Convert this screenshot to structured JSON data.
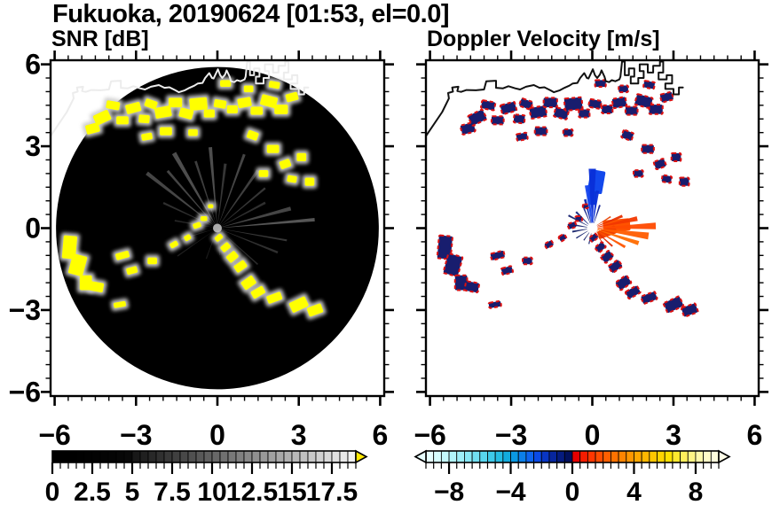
{
  "chart_data": {
    "type": "radar_ppi_pair",
    "suptitle": "Fukuoka, 20190624 [01:53, el=0.0]",
    "axis_range_km": [
      -6.15,
      6.15
    ],
    "x_tick_values": [
      -6,
      -3,
      0,
      3,
      6
    ],
    "x_tick_labels": [
      "−6",
      "−3",
      "0",
      "3",
      "6"
    ],
    "y_tick_values": [
      6,
      3,
      0,
      -3,
      -6
    ],
    "y_tick_labels": [
      "6",
      "3",
      "0",
      "−3",
      "−6"
    ],
    "minor_tick_step_km": 0.5,
    "panels": [
      {
        "id": "snr",
        "title": "SNR [dB]",
        "background": "#ffffff",
        "disk_color": "#000000",
        "echo_color": "#ffff00",
        "echo_halo_color": "#cccccc",
        "coast_color": "#ececec",
        "scan_radius_km": 5.95
      },
      {
        "id": "vel",
        "title": "Doppler Velocity [m/s]",
        "background": "#ffffff",
        "echo_color": "#181d6e",
        "echo_edge_color": "#dd1111",
        "coast_color": "#111111"
      }
    ],
    "echoes_km": [
      [
        -4.6,
        3.65,
        0.5,
        0.35,
        -15
      ],
      [
        -4.25,
        4.05,
        0.6,
        0.4,
        -25
      ],
      [
        -3.85,
        4.5,
        0.5,
        0.3,
        10
      ],
      [
        -3.5,
        3.95,
        0.45,
        0.3,
        0
      ],
      [
        -3.1,
        4.4,
        0.55,
        0.35,
        -15
      ],
      [
        -2.7,
        4.0,
        0.4,
        0.3,
        5
      ],
      [
        -2.45,
        4.55,
        0.45,
        0.3,
        20
      ],
      [
        -2.0,
        4.25,
        0.6,
        0.4,
        -10
      ],
      [
        -1.55,
        4.6,
        0.5,
        0.35,
        0
      ],
      [
        -1.15,
        4.2,
        0.5,
        0.35,
        15
      ],
      [
        -0.7,
        4.55,
        0.65,
        0.45,
        -5
      ],
      [
        -0.3,
        4.2,
        0.4,
        0.3,
        0
      ],
      [
        0.1,
        4.55,
        0.45,
        0.3,
        10
      ],
      [
        0.55,
        4.35,
        0.4,
        0.3,
        0
      ],
      [
        1.0,
        4.6,
        0.5,
        0.35,
        -10
      ],
      [
        1.45,
        4.3,
        0.45,
        0.3,
        0
      ],
      [
        1.9,
        4.65,
        0.6,
        0.4,
        15
      ],
      [
        2.35,
        4.35,
        0.5,
        0.35,
        0
      ],
      [
        2.75,
        4.8,
        0.45,
        0.3,
        -15
      ],
      [
        0.3,
        5.3,
        0.4,
        0.25,
        0
      ],
      [
        1.15,
        5.1,
        0.35,
        0.25,
        0
      ],
      [
        2.1,
        5.25,
        0.4,
        0.25,
        10
      ],
      [
        -1.9,
        3.55,
        0.45,
        0.3,
        0
      ],
      [
        -2.6,
        3.35,
        0.4,
        0.25,
        -10
      ],
      [
        -0.9,
        3.5,
        0.35,
        0.25,
        0
      ],
      [
        1.3,
        3.4,
        0.4,
        0.3,
        20
      ],
      [
        2.05,
        2.9,
        0.45,
        0.3,
        0
      ],
      [
        2.5,
        2.35,
        0.4,
        0.3,
        -20
      ],
      [
        1.7,
        2.0,
        0.35,
        0.25,
        0
      ],
      [
        2.75,
        1.8,
        0.35,
        0.25,
        10
      ],
      [
        3.1,
        2.6,
        0.35,
        0.3,
        0
      ],
      [
        3.4,
        1.7,
        0.35,
        0.3,
        0
      ],
      [
        0.05,
        -0.35,
        0.3,
        0.2,
        -40
      ],
      [
        0.3,
        -0.7,
        0.35,
        0.25,
        -40
      ],
      [
        0.55,
        -1.05,
        0.4,
        0.3,
        -40
      ],
      [
        0.85,
        -1.4,
        0.45,
        0.3,
        -35
      ],
      [
        1.15,
        -2.0,
        0.5,
        0.35,
        -35
      ],
      [
        1.5,
        -2.35,
        0.5,
        0.3,
        -30
      ],
      [
        2.1,
        -2.55,
        0.55,
        0.3,
        -20
      ],
      [
        3.0,
        -2.8,
        0.65,
        0.4,
        -25
      ],
      [
        3.6,
        -3.0,
        0.55,
        0.35,
        -20
      ],
      [
        -5.45,
        -0.7,
        0.5,
        0.85,
        5
      ],
      [
        -5.15,
        -1.35,
        0.55,
        0.75,
        15
      ],
      [
        -4.85,
        -2.0,
        0.45,
        0.55,
        0
      ],
      [
        -4.45,
        -2.15,
        0.5,
        0.35,
        10
      ],
      [
        -3.6,
        -2.8,
        0.45,
        0.2,
        -10
      ],
      [
        -3.5,
        -1.0,
        0.5,
        0.25,
        -15
      ],
      [
        -3.15,
        -1.55,
        0.4,
        0.25,
        -15
      ],
      [
        -2.4,
        -1.2,
        0.35,
        0.25,
        0
      ],
      [
        -1.6,
        -0.6,
        0.3,
        0.2,
        -30
      ],
      [
        -1.1,
        -0.35,
        0.25,
        0.2,
        -30
      ],
      [
        -0.5,
        0.35,
        0.25,
        0.18,
        0
      ],
      [
        -0.75,
        0.1,
        0.3,
        0.2,
        -20
      ],
      [
        -0.25,
        0.8,
        0.2,
        0.15,
        0
      ]
    ],
    "snr_rays": [
      [
        5,
        3.6,
        2,
        0.55
      ],
      [
        15,
        2.8,
        3,
        0.45
      ],
      [
        28,
        2.0,
        2.5,
        0.3
      ],
      [
        40,
        2.3,
        2,
        0.35
      ],
      [
        55,
        2.6,
        2.5,
        0.4
      ],
      [
        70,
        2.9,
        2,
        0.45
      ],
      [
        83,
        2.4,
        2.5,
        0.35
      ],
      [
        95,
        3.0,
        2.5,
        0.5
      ],
      [
        108,
        2.6,
        2,
        0.4
      ],
      [
        120,
        3.2,
        3,
        0.5
      ],
      [
        131,
        2.8,
        2,
        0.45
      ],
      [
        142,
        3.3,
        2.5,
        0.45
      ],
      [
        155,
        2.2,
        2,
        0.3
      ],
      [
        170,
        1.6,
        2,
        0.25
      ],
      [
        197,
        1.4,
        2,
        0.22
      ],
      [
        215,
        1.8,
        1.5,
        0.2
      ],
      [
        250,
        1.2,
        2,
        0.18
      ],
      [
        275,
        1.0,
        2,
        0.15
      ],
      [
        295,
        1.5,
        2,
        0.18
      ],
      [
        318,
        2.0,
        1.5,
        0.28
      ],
      [
        338,
        2.4,
        2,
        0.3
      ],
      [
        350,
        2.6,
        1.5,
        0.35
      ]
    ],
    "vel_rays": [
      [
        90,
        2.2,
        7,
        "#0a2fd8"
      ],
      [
        97,
        1.6,
        6,
        "#1545ee"
      ],
      [
        82,
        1.4,
        5,
        "#0a2fd8"
      ],
      [
        104,
        1.1,
        5,
        "#0d2ab0"
      ],
      [
        72,
        0.9,
        4,
        "#101f90"
      ],
      [
        113,
        0.8,
        4,
        "#15258a"
      ],
      [
        135,
        0.85,
        5,
        "#1a2a80"
      ],
      [
        152,
        1.0,
        4,
        "#14206e"
      ],
      [
        170,
        0.8,
        5,
        "#14206e"
      ],
      [
        190,
        0.75,
        5,
        "#101c66"
      ],
      [
        212,
        0.7,
        4,
        "#14226e"
      ],
      [
        235,
        0.55,
        4,
        "#101c66"
      ],
      [
        258,
        0.6,
        4,
        "#14226e"
      ],
      [
        2,
        2.35,
        6,
        "#ff4a00"
      ],
      [
        -8,
        2.1,
        7,
        "#ff5c00"
      ],
      [
        12,
        1.7,
        6,
        "#f23800"
      ],
      [
        -18,
        1.8,
        5,
        "#ff6c00"
      ],
      [
        22,
        1.2,
        5,
        "#e63000"
      ],
      [
        -30,
        1.4,
        4,
        "#ff5500"
      ],
      [
        -42,
        1.0,
        4,
        "#de2800"
      ],
      [
        32,
        0.8,
        4,
        "#e64000"
      ],
      [
        -55,
        0.7,
        3,
        "#d02000"
      ]
    ],
    "vel_patches": [
      [
        0.15,
        1.7,
        0.55,
        0.85,
        10,
        "#1248ec"
      ],
      [
        0.0,
        1.1,
        0.3,
        0.5,
        0,
        "#0a38d8"
      ],
      [
        0.9,
        0.1,
        1.0,
        0.45,
        -5,
        "#ff5200"
      ],
      [
        0.55,
        -0.15,
        0.7,
        0.3,
        -20,
        "#f04000"
      ]
    ],
    "coastline_km": [
      [
        [
          -6.2,
          3.3
        ],
        [
          -5.55,
          4.25
        ],
        [
          -5.3,
          4.75
        ],
        [
          -5.33,
          4.95
        ],
        [
          -5.15,
          5.0
        ],
        [
          -5.18,
          5.15
        ],
        [
          -4.95,
          5.18
        ],
        [
          -4.99,
          5.02
        ],
        [
          -4.85,
          4.99
        ],
        [
          -4.65,
          5.06
        ],
        [
          -4.3,
          5.05
        ],
        [
          -4.0,
          5.08
        ],
        [
          -3.92,
          5.38
        ],
        [
          -3.56,
          5.4
        ],
        [
          -3.56,
          5.14
        ],
        [
          -3.3,
          5.12
        ],
        [
          -3.1,
          5.2
        ],
        [
          -2.85,
          5.12
        ],
        [
          -2.67,
          5.08
        ],
        [
          -2.45,
          5.18
        ],
        [
          -2.16,
          5.24
        ],
        [
          -1.95,
          5.14
        ],
        [
          -1.77,
          5.16
        ],
        [
          -1.55,
          5.05
        ],
        [
          -1.42,
          4.98
        ],
        [
          -1.2,
          5.05
        ],
        [
          -1.07,
          5.12
        ],
        [
          -0.85,
          5.22
        ],
        [
          -0.72,
          5.3
        ],
        [
          -0.55,
          5.32
        ],
        [
          -0.45,
          5.5
        ],
        [
          -0.3,
          5.68
        ],
        [
          -0.2,
          5.5
        ],
        [
          -0.14,
          5.48
        ],
        [
          0.02,
          5.82
        ],
        [
          0.1,
          5.6
        ],
        [
          0.18,
          5.5
        ],
        [
          0.28,
          5.62
        ],
        [
          0.34,
          5.78
        ],
        [
          0.45,
          5.55
        ],
        [
          0.5,
          5.38
        ],
        [
          0.62,
          5.35
        ],
        [
          0.72,
          5.42
        ],
        [
          0.85,
          5.38
        ],
        [
          1.0,
          5.45
        ],
        [
          1.04,
          5.55
        ],
        [
          1.1,
          6.1
        ],
        [
          1.2,
          6.1
        ],
        [
          1.2,
          5.6
        ],
        [
          1.35,
          5.6
        ],
        [
          1.35,
          5.85
        ],
        [
          1.55,
          5.85
        ],
        [
          1.55,
          5.55
        ],
        [
          1.42,
          5.55
        ],
        [
          1.42,
          5.3
        ],
        [
          1.7,
          5.3
        ],
        [
          1.7,
          5.5
        ],
        [
          1.9,
          5.5
        ],
        [
          1.9,
          5.75
        ],
        [
          1.75,
          5.75
        ],
        [
          1.75,
          6.0
        ],
        [
          2.05,
          6.0
        ],
        [
          2.05,
          5.7
        ],
        [
          2.25,
          5.7
        ],
        [
          2.25,
          5.95
        ],
        [
          2.5,
          5.95
        ],
        [
          2.5,
          6.1
        ],
        [
          2.62,
          6.1
        ],
        [
          2.62,
          5.7
        ],
        [
          2.45,
          5.7
        ],
        [
          2.45,
          5.45
        ],
        [
          2.75,
          5.45
        ],
        [
          2.75,
          5.6
        ],
        [
          2.95,
          5.6
        ],
        [
          2.95,
          5.3
        ],
        [
          2.7,
          5.3
        ],
        [
          2.7,
          5.1
        ],
        [
          3.0,
          5.1
        ],
        [
          3.0,
          4.9
        ],
        [
          3.2,
          4.9
        ],
        [
          3.2,
          5.15
        ],
        [
          3.35,
          5.15
        ]
      ]
    ],
    "colorbars": [
      {
        "id": "snr_scale",
        "labels": [
          "0",
          "2.5",
          "5",
          "7.5",
          "10",
          "12.5",
          "15",
          "17.5"
        ],
        "label_values": [
          0,
          2.5,
          5,
          7.5,
          10,
          12.5,
          15,
          17.5
        ],
        "range": [
          0,
          19
        ],
        "segment_step": 0.5,
        "segment_colors": [
          "#000000",
          "#000000",
          "#000000",
          "#010101",
          "#020202",
          "#030303",
          "#040404",
          "#050505",
          "#070707",
          "#090909",
          "#181818",
          "#202020",
          "#282828",
          "#303030",
          "#383838",
          "#404040",
          "#484848",
          "#505050",
          "#585858",
          "#606060",
          "#686868",
          "#707070",
          "#787878",
          "#808080",
          "#888888",
          "#909090",
          "#989898",
          "#a0a0a0",
          "#a8a8a8",
          "#b0b0b0",
          "#b8b8b8",
          "#c0c0c0",
          "#c8c8c8",
          "#d0d0d0",
          "#d8d8d8",
          "#e0e0e0",
          "#e8e8e8",
          "#f0f0f0"
        ],
        "over_arrow_color": "#ffe800",
        "under_arrow_color": null
      },
      {
        "id": "vel_scale",
        "labels": [
          "−8",
          "−4",
          "0",
          "4",
          "8"
        ],
        "label_values": [
          -8,
          -4,
          0,
          4,
          8
        ],
        "range": [
          -9.5,
          9.5
        ],
        "segment_step": 0.5,
        "segment_colors": [
          "#e6ffff",
          "#d6fdfe",
          "#c4f9fc",
          "#b1f4fa",
          "#9deef8",
          "#88e7f5",
          "#71dff2",
          "#58d5ee",
          "#3ec9e9",
          "#25bce3",
          "#12abdd",
          "#0b99e2",
          "#0c7fe8",
          "#0d64ee",
          "#0b4ae6",
          "#0936c4",
          "#07269e",
          "#051b7f",
          "#02105c",
          "#e60000",
          "#f51d00",
          "#ff3700",
          "#ff4c00",
          "#ff5f00",
          "#ff7200",
          "#ff8400",
          "#ff9600",
          "#ffa700",
          "#ffb700",
          "#ffc600",
          "#ffd400",
          "#ffe100",
          "#ffe92e",
          "#ffef5c",
          "#fff485",
          "#fff8aa",
          "#fffbc8",
          "#fffddd"
        ],
        "over_arrow_color": "#fffde8",
        "under_arrow_color": "#e8ffff"
      }
    ]
  }
}
